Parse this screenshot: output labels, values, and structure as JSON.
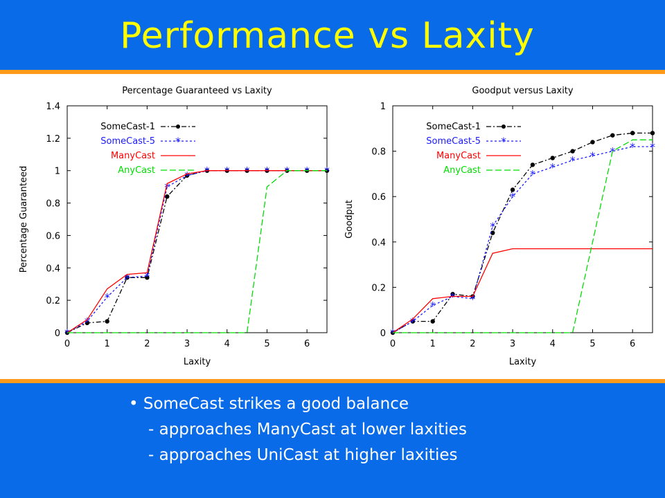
{
  "slide": {
    "title": "Performance vs Laxity",
    "bullet_glyph": "•",
    "bullets": [
      "SomeCast strikes a good balance",
      "- approaches ManyCast at lower laxities",
      "- approaches UniCast at higher laxities"
    ]
  },
  "colors": {
    "background": "#0a6be8",
    "title": "#ffff00",
    "rule": "#ff9a1a",
    "SomeCast-1": "#000000",
    "SomeCast-5": "#1a1aff",
    "ManyCast": "#ff0000",
    "AnyCast": "#00dd00"
  },
  "chart_data": [
    {
      "type": "line",
      "title": "Percentage Guaranteed vs Laxity",
      "xlabel": "Laxity",
      "ylabel": "Percentage Guaranteed",
      "xlim": [
        0,
        6.5
      ],
      "ylim": [
        0,
        1.4
      ],
      "xticks": [
        "0",
        "1",
        "2",
        "3",
        "4",
        "5",
        "6"
      ],
      "yticks": [
        "0",
        "0.2",
        "0.4",
        "0.6",
        "0.8",
        "1",
        "1.2",
        "1.4"
      ],
      "legend_position": "top-left",
      "series": [
        {
          "name": "SomeCast-1",
          "style": "dash-dot",
          "marker": "dot",
          "x": [
            0,
            0.5,
            1,
            1.5,
            2,
            2.5,
            3,
            3.5,
            4,
            4.5,
            5,
            5.5,
            6,
            6.5
          ],
          "y": [
            0,
            0.06,
            0.07,
            0.34,
            0.34,
            0.84,
            0.97,
            1.0,
            1.0,
            1.0,
            1.0,
            1.0,
            1.0,
            1.0
          ]
        },
        {
          "name": "SomeCast-5",
          "style": "dotted",
          "marker": "star",
          "x": [
            0,
            0.5,
            1,
            1.5,
            2,
            2.5,
            3,
            3.5,
            4,
            4.5,
            5,
            5.5,
            6,
            6.5
          ],
          "y": [
            0,
            0.07,
            0.22,
            0.34,
            0.35,
            0.9,
            0.97,
            1.0,
            1.0,
            1.0,
            1.0,
            1.0,
            1.0,
            1.0
          ]
        },
        {
          "name": "ManyCast",
          "style": "solid",
          "marker": "none",
          "x": [
            0,
            0.5,
            1,
            1.5,
            2,
            2.5,
            3,
            3.5,
            4,
            4.5,
            5,
            5.5,
            6,
            6.5
          ],
          "y": [
            0,
            0.08,
            0.27,
            0.36,
            0.37,
            0.92,
            0.98,
            1.0,
            1.0,
            1.0,
            1.0,
            1.0,
            1.0,
            1.0
          ]
        },
        {
          "name": "AnyCast",
          "style": "dashed",
          "marker": "none",
          "x": [
            0,
            4,
            4.5,
            5,
            5.5,
            6,
            6.5
          ],
          "y": [
            0,
            0,
            0,
            0.9,
            1.0,
            1.0,
            1.0
          ]
        }
      ]
    },
    {
      "type": "line",
      "title": "Goodput versus Laxity",
      "xlabel": "Laxity",
      "ylabel": "Goodput",
      "xlim": [
        0,
        6.5
      ],
      "ylim": [
        0,
        1
      ],
      "xticks": [
        "0",
        "1",
        "2",
        "3",
        "4",
        "5",
        "6"
      ],
      "yticks": [
        "0",
        "0.2",
        "0.4",
        "0.6",
        "0.8",
        "1"
      ],
      "legend_position": "top-left",
      "series": [
        {
          "name": "SomeCast-1",
          "style": "dash-dot",
          "marker": "dot",
          "x": [
            0,
            0.5,
            1,
            1.5,
            2,
            2.5,
            3,
            3.5,
            4,
            4.5,
            5,
            5.5,
            6,
            6.5
          ],
          "y": [
            0,
            0.05,
            0.05,
            0.17,
            0.16,
            0.44,
            0.63,
            0.74,
            0.77,
            0.8,
            0.84,
            0.87,
            0.88,
            0.88
          ]
        },
        {
          "name": "SomeCast-5",
          "style": "dotted",
          "marker": "star",
          "x": [
            0,
            0.5,
            1,
            1.5,
            2,
            2.5,
            3,
            3.5,
            4,
            4.5,
            5,
            5.5,
            6,
            6.5
          ],
          "y": [
            0,
            0.05,
            0.12,
            0.16,
            0.15,
            0.47,
            0.6,
            0.7,
            0.73,
            0.76,
            0.78,
            0.8,
            0.82,
            0.82
          ]
        },
        {
          "name": "ManyCast",
          "style": "solid",
          "marker": "none",
          "x": [
            0,
            0.5,
            1,
            1.5,
            2,
            2.5,
            3,
            3.5,
            4,
            4.5,
            5,
            5.5,
            6,
            6.5
          ],
          "y": [
            0,
            0.06,
            0.15,
            0.16,
            0.16,
            0.35,
            0.37,
            0.37,
            0.37,
            0.37,
            0.37,
            0.37,
            0.37,
            0.37
          ]
        },
        {
          "name": "AnyCast",
          "style": "dashed",
          "marker": "none",
          "x": [
            0,
            4,
            4.5,
            5,
            5.5,
            6,
            6.5
          ],
          "y": [
            0,
            0,
            0,
            0.4,
            0.8,
            0.85,
            0.85
          ]
        }
      ]
    }
  ]
}
